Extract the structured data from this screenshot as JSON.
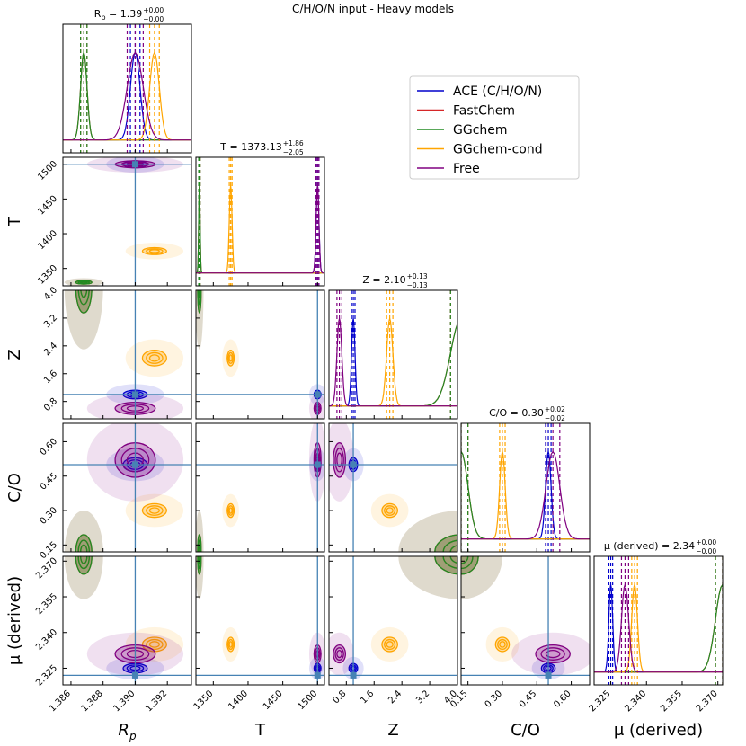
{
  "chart_data": {
    "type": "corner",
    "title": "C/H/O/N input - Heavy models",
    "parameters": [
      {
        "label": "R",
        "label_sub": "p",
        "title": {
          "text": "R",
          "sub": "p",
          "text2": " = 1.39",
          "upper": "+0.00",
          "lower": "−0.00"
        },
        "lim": [
          1.3855,
          1.3935
        ],
        "ticks": [
          1.386,
          1.388,
          {
            "value": 1.39,
            "label": "1.390"
          },
          1.392
        ]
      },
      {
        "label": "T",
        "title": {
          "text": "T = 1373.13",
          "upper": "+1.86",
          "lower": "−2.05"
        },
        "lim": [
          1325,
          1510
        ],
        "ticks": [
          1350,
          1400,
          1450,
          1500
        ]
      },
      {
        "label": "Z",
        "title": {
          "text": "Z = 2.10",
          "upper": "+0.13",
          "lower": "−0.13"
        },
        "lim": [
          0.3,
          4.0
        ],
        "ticks": [
          0.8,
          1.6,
          2.4,
          3.2,
          {
            "value": 4.0,
            "label": "4.0"
          }
        ]
      },
      {
        "label": "C/O",
        "title": {
          "text": "C/O = 0.30",
          "upper": "+0.02",
          "lower": "−0.02"
        },
        "lim": [
          0.12,
          0.68
        ],
        "ticks": [
          0.15,
          {
            "value": 0.3,
            "label": "0.30"
          },
          0.45,
          {
            "value": 0.6,
            "label": "0.60"
          }
        ]
      },
      {
        "label": "μ (derived)",
        "title": {
          "text": "μ (derived) = 2.34",
          "upper": "+0.00",
          "lower": "−0.00"
        },
        "lim": [
          2.318,
          2.372
        ],
        "ticks": [
          2.325,
          {
            "value": 2.34,
            "label": "2.340"
          },
          2.355,
          {
            "value": 2.37,
            "label": "2.370"
          }
        ]
      }
    ],
    "truths": [
      1.39,
      1500,
      1.0,
      0.5,
      2.322
    ],
    "truth_color": "#4682b4",
    "series": [
      {
        "name": "ACE (C/H/O/N)",
        "color": "#0000cc",
        "centers": [
          1.39,
          1500,
          1.0,
          0.5,
          2.325
        ],
        "spreads": [
          0.0003,
          2,
          0.05,
          0.012,
          0.0008
        ]
      },
      {
        "name": "FastChem",
        "color": "#d62728",
        "centers": [
          1.3868,
          1330,
          4.1,
          0.12,
          2.372
        ],
        "spreads": [
          0.0002,
          1,
          0.3,
          0.03,
          0.003
        ]
      },
      {
        "name": "GGchem",
        "color": "#228b22",
        "centers": [
          1.3868,
          1330,
          4.1,
          0.12,
          2.372
        ],
        "spreads": [
          0.0002,
          1,
          0.3,
          0.03,
          0.003
        ]
      },
      {
        "name": "GGchem-cond",
        "color": "#ffa500",
        "centers": [
          1.3912,
          1375,
          2.05,
          0.3,
          2.335
        ],
        "spreads": [
          0.0003,
          2,
          0.09,
          0.012,
          0.0012
        ]
      },
      {
        "name": "Free",
        "color": "#800080",
        "centers": [
          1.39,
          1500,
          0.6,
          0.52,
          2.331
        ],
        "spreads": [
          0.0005,
          2,
          0.07,
          0.03,
          0.0015
        ]
      }
    ]
  }
}
